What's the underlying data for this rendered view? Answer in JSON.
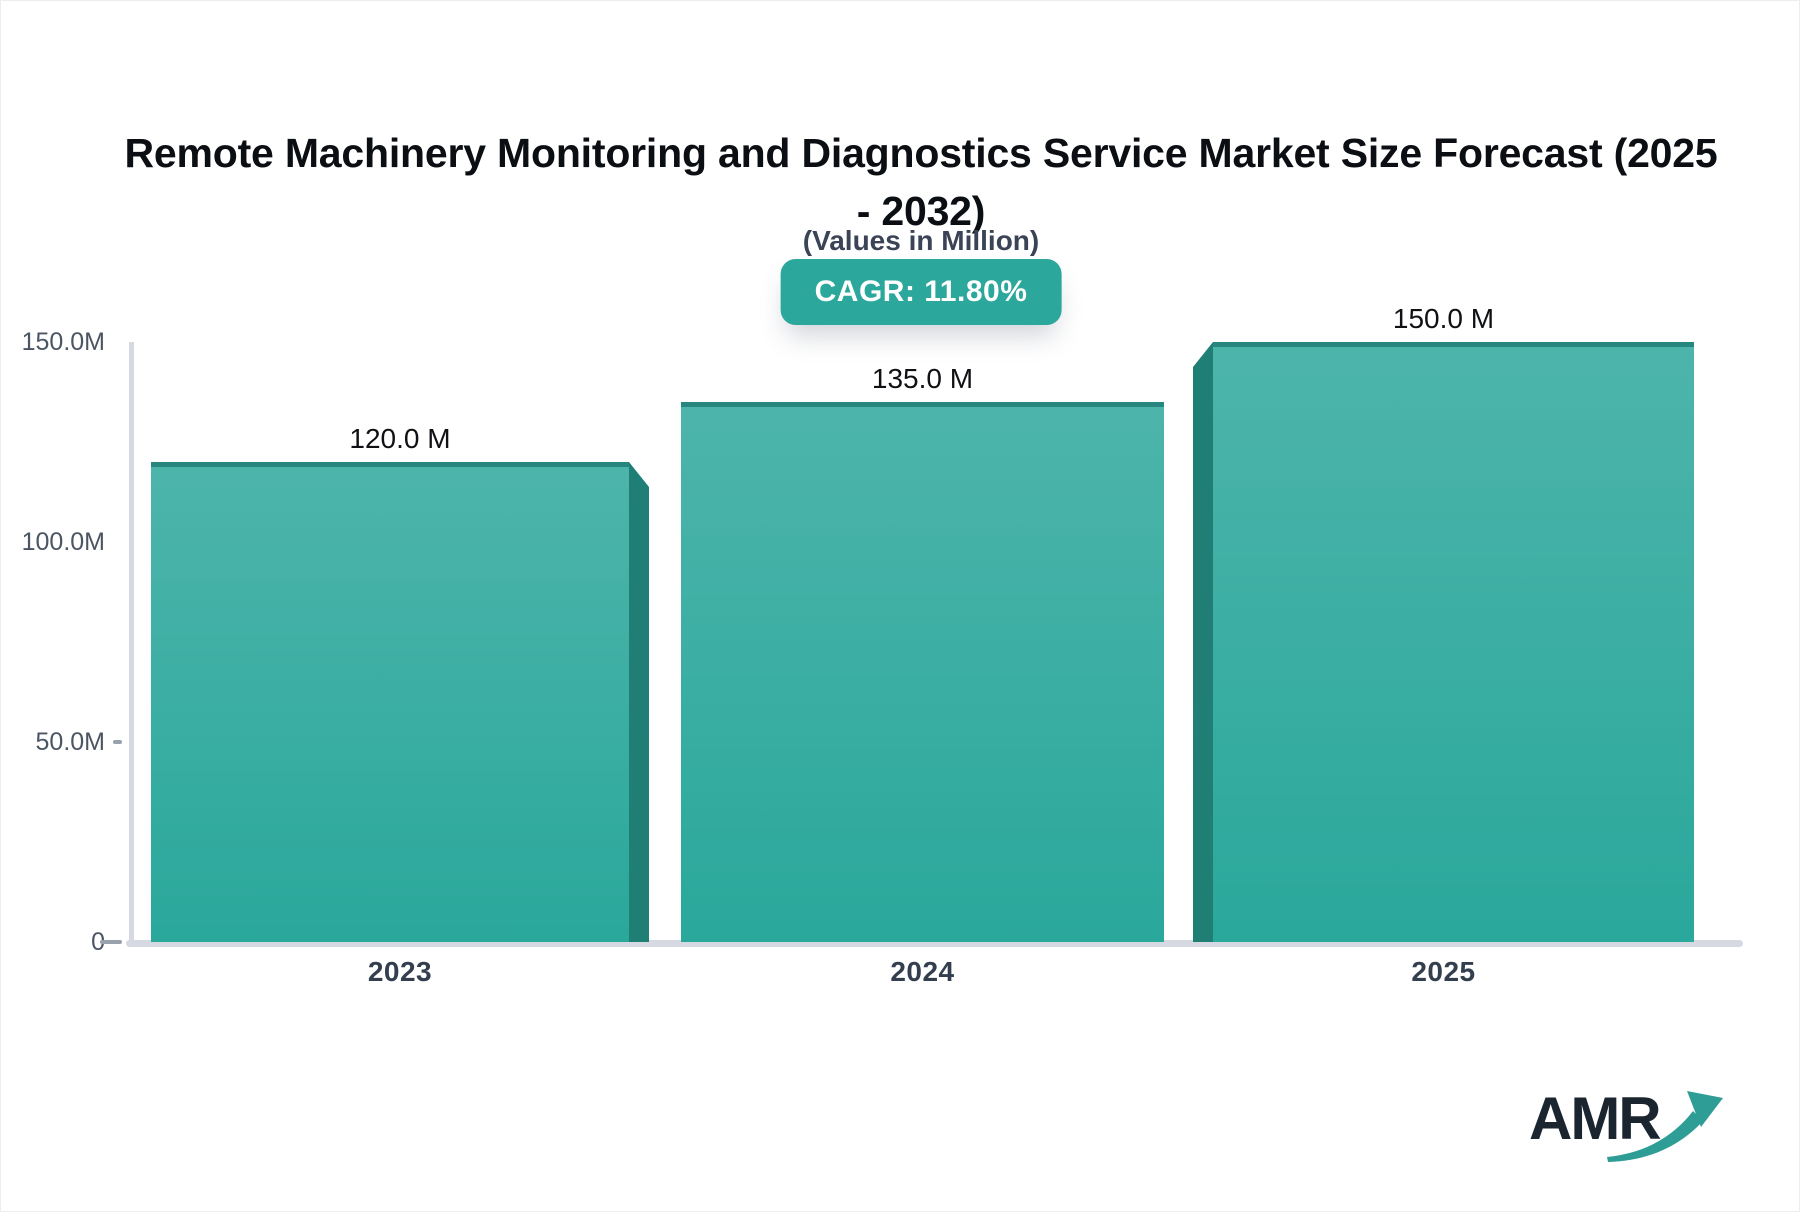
{
  "title": {
    "full": "Remote Machinery Monitoring and Diagnostics Service Market Size Forecast (2025 - 2032)",
    "lines": [
      "Remote Machinery Monitoring and Diagnostics Service Market Size Forecast (2025",
      "- 2032)"
    ]
  },
  "subtitle": "(Values in Million)",
  "cagr_badge": "CAGR: 11.80%",
  "chart_data": {
    "type": "bar",
    "title": "Remote Machinery Monitoring and Diagnostics Service Market Size Forecast (2025 - 2032)",
    "subtitle": "(Values in Million)",
    "cagr_percent": 11.8,
    "unit": "Million",
    "categories": [
      "2023",
      "2024",
      "2025"
    ],
    "values": [
      120.0,
      135.0,
      150.0
    ],
    "bar_value_labels": [
      "120.0 M",
      "135.0 M",
      "150.0 M"
    ],
    "ylim": [
      0,
      150
    ],
    "yticks": [
      {
        "label": "150.0M",
        "value": 150,
        "dash": false
      },
      {
        "label": "100.0M",
        "value": 100,
        "dash": false
      },
      {
        "label": "50.0M",
        "value": 50,
        "dash": true
      },
      {
        "label": "0",
        "value": 0,
        "dash": true
      }
    ],
    "grid": false,
    "legend": false,
    "colors": {
      "bar_top": "#4db4ab",
      "bar_bottom": "#2aa89b",
      "bar_edge": "#27867d",
      "bar_bevel": "#1f7e76",
      "axis": "#d6d9e1",
      "badge": "#2ba79b"
    }
  },
  "logo": {
    "text": "AMR"
  }
}
